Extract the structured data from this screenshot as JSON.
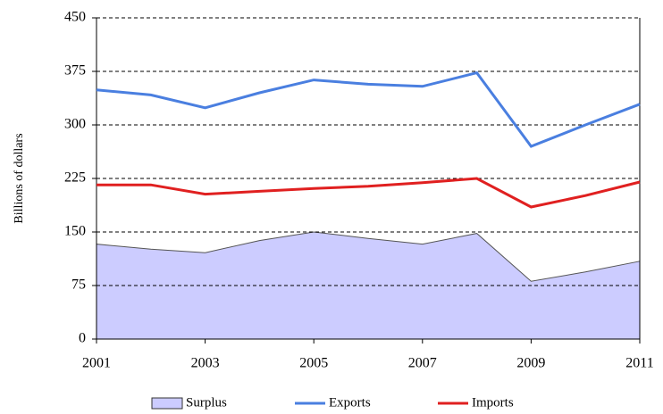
{
  "chart_data": {
    "type": "line",
    "y_label": "Billions of dollars",
    "x": [
      2001,
      2002,
      2003,
      2004,
      2005,
      2006,
      2007,
      2008,
      2009,
      2010,
      2011
    ],
    "xlim": [
      2001,
      2011
    ],
    "xticks": [
      2001,
      2003,
      2005,
      2007,
      2009,
      2011
    ],
    "ylim": [
      0,
      450
    ],
    "yticks": [
      0,
      75,
      150,
      225,
      300,
      375,
      450
    ],
    "grid": true,
    "legend": "bottom",
    "series": [
      {
        "name": "Surplus",
        "kind": "area",
        "color": "#ccccff",
        "values": [
          133,
          126,
          121,
          138,
          150,
          141,
          133,
          148,
          81,
          94,
          109
        ]
      },
      {
        "name": "Exports",
        "kind": "line",
        "color": "#4a7fe0",
        "values": [
          349,
          342,
          324,
          345,
          363,
          357,
          354,
          373,
          270,
          300,
          329
        ]
      },
      {
        "name": "Imports",
        "kind": "line",
        "color": "#e02020",
        "values": [
          216,
          216,
          203,
          207,
          211,
          214,
          219,
          225,
          185,
          201,
          220
        ]
      }
    ]
  }
}
